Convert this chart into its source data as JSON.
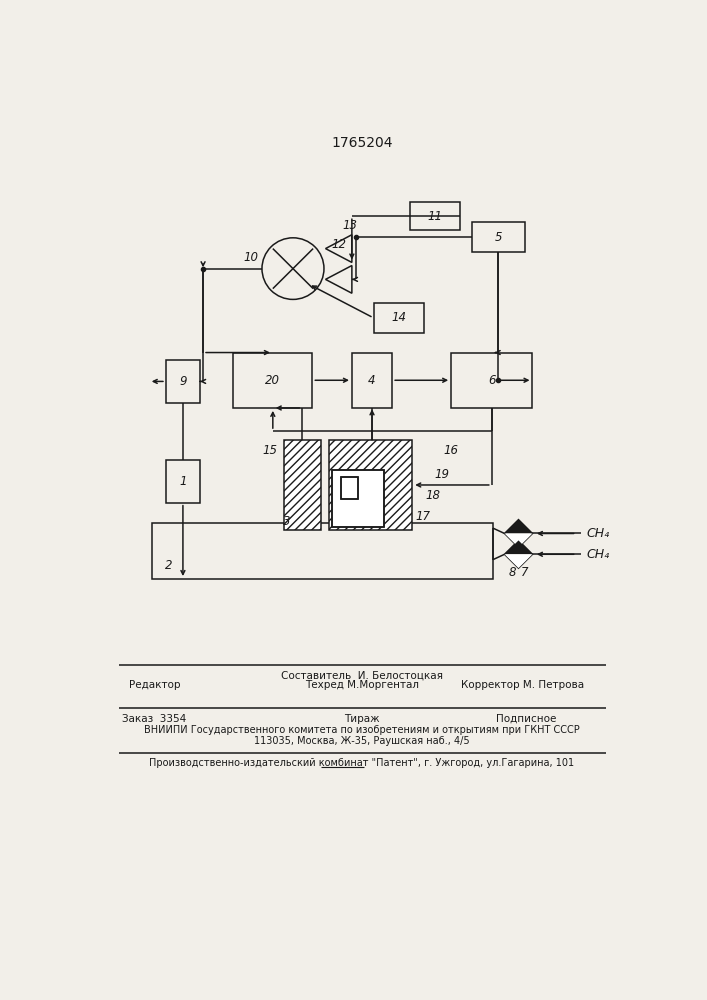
{
  "title": "1765204",
  "bg": "#f2efe9",
  "lc": "#1a1a1a",
  "footer_editor": "Редактор",
  "footer_comp": "Составитель  И. Белостоцкая",
  "footer_tech": "Техред М.Моргентал",
  "footer_corr": "Корректор М. Петрова",
  "footer_order": "Заказ  3354",
  "footer_circ": "Тираж",
  "footer_sub": "Подписное",
  "footer_vni": "ВНИИПИ Государственного комитета по изобретениям и открытиям при ГКНТ СССР",
  "footer_addr": "113035, Москва, Ж-35, Раушская наб., 4/5",
  "footer_prod": "Производственно-издательский комбинат \"Патент\", г. Ужгород, ул.Гагарина, 101"
}
